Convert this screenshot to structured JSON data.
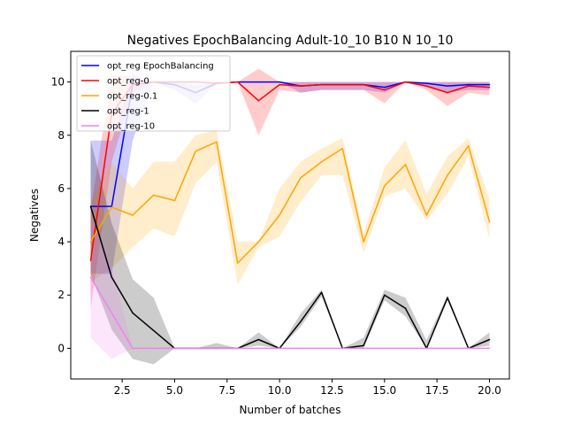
{
  "chart_data": {
    "type": "line",
    "title": "Negatives EpochBalancing Adult-10_10 B10 N 10_10",
    "xlabel": "Number of batches",
    "ylabel": "Negatives",
    "xlim": [
      0.05,
      20.95
    ],
    "ylim": [
      -1.15,
      11.15
    ],
    "xticks": [
      2.5,
      5.0,
      7.5,
      10.0,
      12.5,
      15.0,
      17.5,
      20.0
    ],
    "xtick_labels": [
      "2.5",
      "5.0",
      "7.5",
      "10.0",
      "12.5",
      "15.0",
      "17.5",
      "20.0"
    ],
    "yticks": [
      0,
      2,
      4,
      6,
      8,
      10
    ],
    "ytick_labels": [
      "0",
      "2",
      "4",
      "6",
      "8",
      "10"
    ],
    "grid": false,
    "legend_position": "top-left",
    "x": [
      1,
      2,
      3,
      4,
      5,
      6,
      7,
      8,
      9,
      10,
      11,
      12,
      13,
      14,
      15,
      16,
      17,
      18,
      19,
      20
    ],
    "series": [
      {
        "name": "opt_reg EpochBalancing",
        "color": "#0000ff",
        "values": [
          5.33,
          5.33,
          9.9,
          10,
          9.9,
          9.6,
          9.95,
          10,
          10,
          10,
          9.85,
          9.9,
          9.9,
          9.9,
          9.8,
          10,
          9.95,
          9.85,
          9.9,
          9.9
        ],
        "lower": [
          2.8,
          2.8,
          7.8,
          10,
          9.7,
          9.2,
          9.9,
          10,
          10,
          10,
          9.6,
          9.7,
          9.7,
          9.7,
          9.6,
          10,
          9.8,
          9.6,
          9.7,
          9.7
        ],
        "upper": [
          7.8,
          7.8,
          10.3,
          10,
          10,
          9.9,
          10,
          10,
          10,
          10,
          10,
          10,
          10,
          10,
          10,
          10,
          10,
          10,
          10,
          10
        ]
      },
      {
        "name": "opt_reg-0",
        "color": "#ff0000",
        "values": [
          3.3,
          8.8,
          9.9,
          10,
          10,
          10,
          9.95,
          10,
          9.3,
          9.9,
          9.85,
          9.9,
          9.9,
          9.9,
          9.7,
          10,
          9.85,
          9.6,
          9.85,
          9.8
        ],
        "lower": [
          1.5,
          7.0,
          9.6,
          10,
          10,
          10,
          9.9,
          10,
          8.0,
          9.7,
          9.6,
          9.7,
          9.7,
          9.7,
          9.2,
          10,
          9.7,
          9.1,
          9.6,
          9.5
        ],
        "upper": [
          5.2,
          10.3,
          10.2,
          10,
          10,
          10,
          10,
          10,
          10.5,
          10,
          10,
          10,
          10,
          10,
          10,
          10,
          10,
          10,
          10,
          10
        ]
      },
      {
        "name": "opt_reg-0.1",
        "color": "#ffa500",
        "values": [
          4.0,
          5.3,
          5.0,
          5.75,
          5.55,
          7.4,
          7.75,
          3.2,
          4.0,
          5.0,
          6.4,
          7.0,
          7.5,
          4.0,
          6.1,
          6.9,
          5.0,
          6.5,
          7.6,
          4.75
        ],
        "lower": [
          2.5,
          3.0,
          3.8,
          4.5,
          4.2,
          6.2,
          7.0,
          2.4,
          3.8,
          4.2,
          5.5,
          6.5,
          6.5,
          3.6,
          5.7,
          6.0,
          4.8,
          5.8,
          7.2,
          4.1
        ],
        "upper": [
          5.5,
          7.0,
          6.0,
          7.0,
          7.0,
          8.0,
          8.2,
          4.0,
          4.0,
          6.0,
          7.0,
          7.5,
          7.9,
          4.3,
          6.8,
          7.8,
          5.8,
          7.2,
          7.9,
          5.6
        ]
      },
      {
        "name": "opt_reg-1",
        "color": "#000000",
        "values": [
          5.33,
          2.67,
          1.33,
          0.67,
          0,
          0,
          0,
          0,
          0.33,
          0,
          1.0,
          2.1,
          0,
          0.1,
          2.0,
          1.5,
          0,
          1.9,
          0,
          0.33
        ],
        "lower": [
          2.8,
          0.7,
          -0.4,
          -0.6,
          0,
          0,
          0,
          0,
          0.1,
          0,
          0.8,
          1.95,
          0,
          0,
          1.8,
          1.2,
          0,
          1.8,
          0,
          0.1
        ],
        "upper": [
          7.8,
          4.7,
          2.6,
          1.9,
          0,
          0,
          0.2,
          0,
          0.6,
          0,
          1.3,
          2.2,
          0,
          0.4,
          2.2,
          1.9,
          0.3,
          2.0,
          0,
          0.6
        ]
      },
      {
        "name": "opt_reg-10",
        "color": "#ee82ee",
        "values": [
          2.67,
          1.33,
          0,
          0,
          0,
          0,
          0,
          0,
          0,
          0,
          0,
          0,
          0,
          0,
          0,
          0,
          0,
          0,
          0,
          0
        ],
        "lower": [
          0.4,
          -0.4,
          0,
          0,
          0,
          0,
          0,
          0,
          0,
          0,
          0,
          0,
          0,
          0,
          0,
          0,
          0,
          0,
          0,
          0
        ],
        "upper": [
          5.0,
          3.1,
          0,
          0,
          0,
          0,
          0,
          0,
          0,
          0,
          0,
          0,
          0,
          0,
          0,
          0,
          0,
          0,
          0,
          0
        ]
      }
    ]
  }
}
